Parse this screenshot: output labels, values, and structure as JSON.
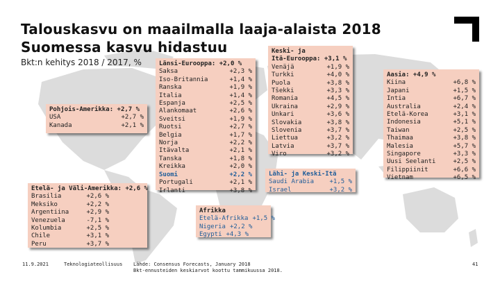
{
  "title_line1": "Talouskasvu on maailmalla laaja-alaista 2018",
  "title_line2": "Suomessa kasvu hidastuu",
  "subtitle": "Bkt:n kehitys 2018 / 2017, %",
  "regions": {
    "north_america": {
      "heading": "Pohjois-Amerikka: +2,7 %",
      "rows": [
        {
          "country": "USA",
          "value": "+2,7 %"
        },
        {
          "country": "Kanada",
          "value": "+2,1 %"
        }
      ]
    },
    "latin_america": {
      "heading": "Etelä- ja Väli-Amerikka: +2,6 %",
      "rows": [
        {
          "country": "Brasilia",
          "value": "+2,6 %"
        },
        {
          "country": "Meksiko",
          "value": "+2,2 %"
        },
        {
          "country": "Argentiina",
          "value": "+2,9 %"
        },
        {
          "country": "Venezuela",
          "value": "-7,1 %"
        },
        {
          "country": "Kolumbia",
          "value": "+2,5 %"
        },
        {
          "country": "Chile",
          "value": "+3,1 %"
        },
        {
          "country": "Peru",
          "value": "+3,7 %"
        }
      ]
    },
    "western_europe": {
      "heading": "Länsi-Eurooppa: +2,0 %",
      "rows": [
        {
          "country": "Saksa",
          "value": "+2,3 %"
        },
        {
          "country": "Iso-Britannia",
          "value": "+1,4 %"
        },
        {
          "country": "Ranska",
          "value": "+1,9 %"
        },
        {
          "country": "Italia",
          "value": "+1,4 %"
        },
        {
          "country": "Espanja",
          "value": "+2,5 %"
        },
        {
          "country": "Alankomaat",
          "value": "+2,6 %"
        },
        {
          "country": "Sveitsi",
          "value": "+1,9 %"
        },
        {
          "country": "Ruotsi",
          "value": "+2,7 %"
        },
        {
          "country": "Belgia",
          "value": "+1,7 %"
        },
        {
          "country": "Norja",
          "value": "+2,2 %"
        },
        {
          "country": "Itävalta",
          "value": "+2,1 %"
        },
        {
          "country": "Tanska",
          "value": "+1,8 %"
        },
        {
          "country": "Kreikka",
          "value": "+2,0 %"
        },
        {
          "country": "Suomi",
          "value": "+2,2 %"
        },
        {
          "country": "Portugali",
          "value": "+2,1 %"
        },
        {
          "country": "Irlanti",
          "value": "+3,8 %"
        }
      ]
    },
    "eastern_europe": {
      "heading1": "Keski- ja",
      "heading2": "Itä-Eurooppa: +3,1 %",
      "rows": [
        {
          "country": "Venäjä",
          "value": "+1,9 %"
        },
        {
          "country": "Turkki",
          "value": "+4,0 %"
        },
        {
          "country": "Puola",
          "value": "+3,8 %"
        },
        {
          "country": "Tšekki",
          "value": "+3,3 %"
        },
        {
          "country": "Romania",
          "value": "+4,5 %"
        },
        {
          "country": "Ukraina",
          "value": "+2,9 %"
        },
        {
          "country": "Unkari",
          "value": "+3,6 %"
        },
        {
          "country": "Slovakia",
          "value": "+3,8 %"
        },
        {
          "country": "Slovenia",
          "value": "+3,7 %"
        },
        {
          "country": "Liettua",
          "value": "+3,2 %"
        },
        {
          "country": "Latvia",
          "value": "+3,7 %"
        },
        {
          "country": "Viro",
          "value": "+3,2 %"
        }
      ]
    },
    "middle_east": {
      "heading": "Lähi- ja Keski-Itä",
      "rows": [
        {
          "country": "Saudi Arabia",
          "value": "+1,5 %"
        },
        {
          "country": "Israel",
          "value": "+3,2 %"
        }
      ]
    },
    "africa": {
      "heading": "Afrikka",
      "rows": [
        {
          "country": "Etelä-Afrikka",
          "value": "+1,5 %"
        },
        {
          "country": "Nigeria",
          "value": "+2,2 %"
        },
        {
          "country": "Egypti",
          "value": "+4,3 %"
        }
      ]
    },
    "asia": {
      "heading": "Aasia: +4,9 %",
      "rows": [
        {
          "country": "Kiina",
          "value": "+6,8 %"
        },
        {
          "country": "Japani",
          "value": "+1,5 %"
        },
        {
          "country": "Intia",
          "value": "+6,7 %"
        },
        {
          "country": "Australia",
          "value": "+2,4 %"
        },
        {
          "country": "Etelä-Korea",
          "value": "+3,1 %"
        },
        {
          "country": "Indonesia",
          "value": "+5,1 %"
        },
        {
          "country": "Taiwan",
          "value": "+2,5 %"
        },
        {
          "country": "Thaimaa",
          "value": "+3,8 %"
        },
        {
          "country": "Malesia",
          "value": "+5,7 %"
        },
        {
          "country": "Singapore",
          "value": "+3,3 %"
        },
        {
          "country": "Uusi Seelanti",
          "value": "+2,5 %"
        },
        {
          "country": "Filippiinit",
          "value": "+6,6 %"
        },
        {
          "country": "Vietnam",
          "value": "+6,5 %"
        }
      ]
    }
  },
  "footer": {
    "date": "11.9.2021",
    "org": "Teknologiateollisuus",
    "source1": "Lähde: Consensus Forecasts, January 2018",
    "source2": "Bkt-ennusteiden keskiarvot koottu tammikuussa 2018.",
    "page": "41"
  },
  "colors": {
    "box_bg": "#f6cfc0",
    "highlight": "#1f5d99",
    "map": "#d9d9d9"
  }
}
